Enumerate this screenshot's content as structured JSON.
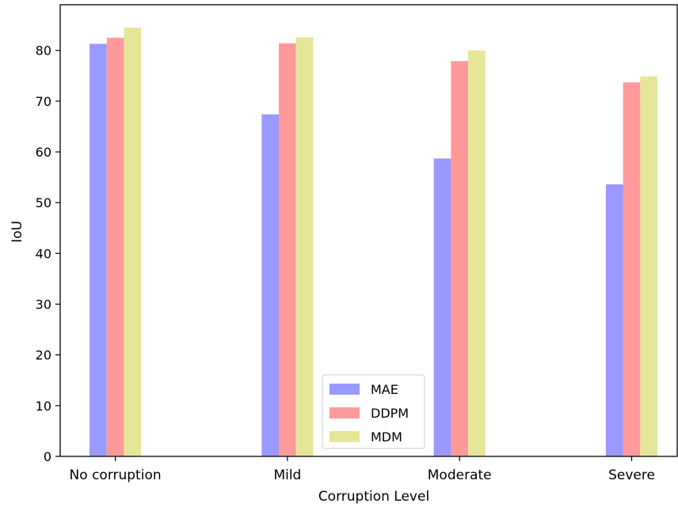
{
  "chart_data": {
    "type": "bar",
    "title": "",
    "xlabel": "Corruption Level",
    "ylabel": "IoU",
    "categories": [
      "No corruption",
      "Mild",
      "Moderate",
      "Severe"
    ],
    "series": [
      {
        "name": "MAE",
        "values": [
          81.3,
          67.4,
          58.7,
          53.6
        ],
        "color": "#9999ff"
      },
      {
        "name": "DDPM",
        "values": [
          82.5,
          81.4,
          77.9,
          73.7
        ],
        "color": "#ff9999"
      },
      {
        "name": "MDM",
        "values": [
          84.5,
          82.6,
          80.0,
          74.9
        ],
        "color": "#e6e699"
      }
    ],
    "ylim": [
      0,
      89
    ],
    "yticks": [
      0,
      10,
      20,
      30,
      40,
      50,
      60,
      70,
      80
    ],
    "grid": false,
    "legend_position": "bottom-center"
  }
}
